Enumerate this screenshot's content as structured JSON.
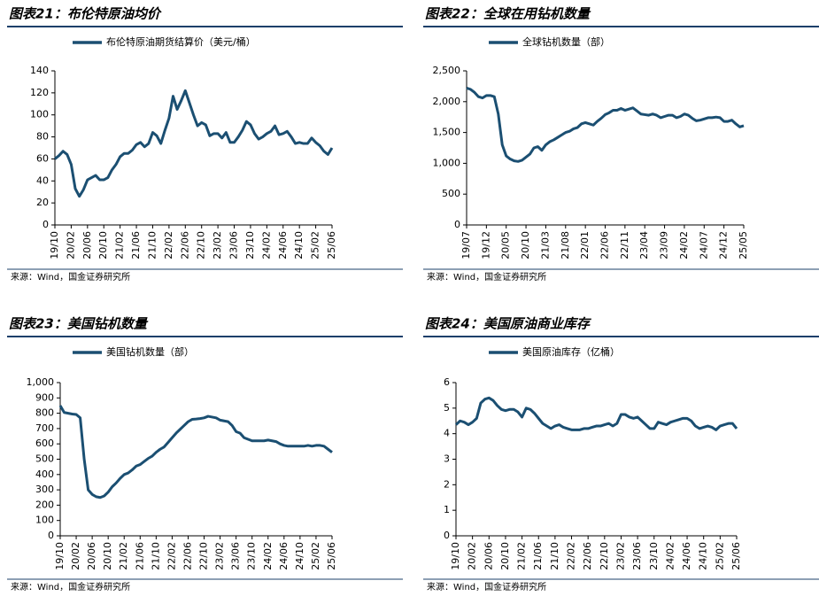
{
  "chart_data": [
    {
      "type": "line",
      "title": "图表21：布伦特原油均价",
      "source": "来源：Wind，国金证券研究所",
      "categories": [
        "19/10",
        null,
        null,
        null,
        "20/02",
        null,
        null,
        null,
        "20/06",
        null,
        null,
        null,
        "20/10",
        null,
        null,
        null,
        "21/02",
        null,
        null,
        null,
        "21/06",
        null,
        null,
        null,
        "21/10",
        null,
        null,
        null,
        "22/02",
        null,
        null,
        null,
        "22/06",
        null,
        null,
        null,
        "22/10",
        null,
        null,
        null,
        "23/02",
        null,
        null,
        null,
        "23/06",
        null,
        null,
        null,
        "23/10",
        null,
        null,
        null,
        "24/02",
        null,
        null,
        null,
        "24/06",
        null,
        null,
        null,
        "24/10",
        null,
        null,
        null,
        "25/02",
        null,
        null,
        null,
        "25/06"
      ],
      "series": [
        {
          "name": "布伦特原油期货结算价（美元/桶）",
          "color": "#1b4f72",
          "values": [
            60,
            63,
            67,
            64,
            55,
            33,
            26,
            32,
            41,
            43,
            45,
            41,
            41,
            43,
            50,
            55,
            62,
            65,
            65,
            68,
            73,
            75,
            71,
            74,
            84,
            81,
            74,
            86,
            97,
            117,
            105,
            113,
            122,
            111,
            100,
            90,
            93,
            91,
            81,
            83,
            83,
            79,
            84,
            75,
            75,
            80,
            86,
            94,
            91,
            83,
            78,
            80,
            83,
            85,
            90,
            82,
            83,
            85,
            80,
            74,
            75,
            74,
            74,
            79,
            75,
            72,
            67,
            64,
            70
          ]
        }
      ],
      "ylim": [
        0,
        140
      ],
      "yticks": [
        0,
        20,
        40,
        60,
        80,
        100,
        120,
        140
      ]
    },
    {
      "type": "line",
      "title": "图表22：全球在用钻机数量",
      "source": "来源：Wind，国金证券研究所",
      "categories": [
        "19/07",
        null,
        null,
        null,
        null,
        "19/12",
        null,
        null,
        null,
        null,
        "20/05",
        null,
        null,
        null,
        null,
        "20/10",
        null,
        null,
        null,
        null,
        "21/03",
        null,
        null,
        null,
        null,
        "21/08",
        null,
        null,
        null,
        null,
        "22/01",
        null,
        null,
        null,
        null,
        "22/06",
        null,
        null,
        null,
        null,
        "22/11",
        null,
        null,
        null,
        null,
        "23/04",
        null,
        null,
        null,
        null,
        "23/09",
        null,
        null,
        null,
        null,
        "24/02",
        null,
        null,
        null,
        null,
        "24/07",
        null,
        null,
        null,
        null,
        "24/12",
        null,
        null,
        null,
        null,
        "25/05"
      ],
      "series": [
        {
          "name": "全球钻机数量（部）",
          "color": "#1b4f72",
          "values": [
            2220,
            2200,
            2150,
            2080,
            2060,
            2100,
            2100,
            2080,
            1800,
            1300,
            1120,
            1070,
            1040,
            1030,
            1050,
            1100,
            1150,
            1250,
            1270,
            1210,
            1300,
            1350,
            1380,
            1420,
            1460,
            1500,
            1520,
            1560,
            1580,
            1640,
            1660,
            1640,
            1620,
            1680,
            1730,
            1790,
            1820,
            1860,
            1860,
            1890,
            1860,
            1880,
            1900,
            1850,
            1800,
            1790,
            1780,
            1800,
            1780,
            1740,
            1760,
            1780,
            1780,
            1740,
            1760,
            1800,
            1780,
            1730,
            1690,
            1700,
            1720,
            1740,
            1740,
            1750,
            1740,
            1680,
            1680,
            1700,
            1640,
            1590,
            1610
          ]
        }
      ],
      "ylim": [
        0,
        2500
      ],
      "yticks": [
        0,
        500,
        {
          "value": 1000,
          "label": "1,000"
        },
        {
          "value": 1500,
          "label": "1,500"
        },
        {
          "value": 2000,
          "label": "2,000"
        },
        {
          "value": 2500,
          "label": "2,500"
        }
      ]
    },
    {
      "type": "line",
      "title": "图表23：美国钻机数量",
      "source": "来源：Wind，国金证券研究所",
      "categories": [
        "19/10",
        null,
        null,
        null,
        "20/02",
        null,
        null,
        null,
        "20/06",
        null,
        null,
        null,
        "20/10",
        null,
        null,
        null,
        "21/02",
        null,
        null,
        null,
        "21/06",
        null,
        null,
        null,
        "21/10",
        null,
        null,
        null,
        "22/02",
        null,
        null,
        null,
        "22/06",
        null,
        null,
        null,
        "22/10",
        null,
        null,
        null,
        "23/02",
        null,
        null,
        null,
        "23/06",
        null,
        null,
        null,
        "23/10",
        null,
        null,
        null,
        "24/02",
        null,
        null,
        null,
        "24/06",
        null,
        null,
        null,
        "24/10",
        null,
        null,
        null,
        "25/02",
        null,
        null,
        null,
        "25/06"
      ],
      "series": [
        {
          "name": "美国钻机数量（部）",
          "color": "#1b4f72",
          "values": [
            850,
            805,
            800,
            795,
            792,
            770,
            500,
            300,
            270,
            255,
            250,
            260,
            285,
            320,
            345,
            375,
            400,
            410,
            430,
            455,
            465,
            485,
            505,
            520,
            545,
            565,
            580,
            610,
            640,
            670,
            695,
            720,
            745,
            760,
            762,
            765,
            770,
            780,
            775,
            770,
            755,
            750,
            745,
            720,
            680,
            670,
            640,
            630,
            620,
            620,
            620,
            620,
            625,
            620,
            615,
            600,
            590,
            585,
            585,
            585,
            585,
            585,
            590,
            585,
            590,
            590,
            585,
            565,
            545
          ]
        }
      ],
      "ylim": [
        0,
        1000
      ],
      "yticks": [
        0,
        100,
        200,
        300,
        400,
        500,
        600,
        700,
        800,
        900,
        {
          "value": 1000,
          "label": "1,000"
        }
      ]
    },
    {
      "type": "line",
      "title": "图表24：美国原油商业库存",
      "source": "来源：Wind，国金证券研究所",
      "categories": [
        "19/10",
        null,
        null,
        null,
        "20/02",
        null,
        null,
        null,
        "20/06",
        null,
        null,
        null,
        "20/10",
        null,
        null,
        null,
        "21/02",
        null,
        null,
        null,
        "21/06",
        null,
        null,
        null,
        "21/10",
        null,
        null,
        null,
        "22/02",
        null,
        null,
        null,
        "22/06",
        null,
        null,
        null,
        "22/10",
        null,
        null,
        null,
        "23/02",
        null,
        null,
        null,
        "23/06",
        null,
        null,
        null,
        "23/10",
        null,
        null,
        null,
        "24/02",
        null,
        null,
        null,
        "24/06",
        null,
        null,
        null,
        "24/10",
        null,
        null,
        null,
        "25/02",
        null,
        null,
        null,
        "25/06"
      ],
      "series": [
        {
          "name": "美国原油库存（亿桶）",
          "color": "#1b4f72",
          "values": [
            4.35,
            4.5,
            4.45,
            4.35,
            4.45,
            4.6,
            5.2,
            5.35,
            5.4,
            5.3,
            5.1,
            4.95,
            4.9,
            4.95,
            4.95,
            4.85,
            4.65,
            5.0,
            4.95,
            4.8,
            4.6,
            4.4,
            4.3,
            4.2,
            4.3,
            4.35,
            4.25,
            4.2,
            4.15,
            4.15,
            4.15,
            4.2,
            4.2,
            4.25,
            4.3,
            4.3,
            4.35,
            4.4,
            4.3,
            4.4,
            4.75,
            4.75,
            4.65,
            4.6,
            4.65,
            4.5,
            4.35,
            4.2,
            4.2,
            4.45,
            4.4,
            4.35,
            4.45,
            4.5,
            4.55,
            4.6,
            4.6,
            4.5,
            4.3,
            4.2,
            4.25,
            4.3,
            4.25,
            4.15,
            4.3,
            4.35,
            4.4,
            4.4,
            4.2
          ]
        }
      ],
      "ylim": [
        0,
        6
      ],
      "yticks": [
        0,
        1,
        2,
        3,
        4,
        5,
        6
      ]
    }
  ]
}
